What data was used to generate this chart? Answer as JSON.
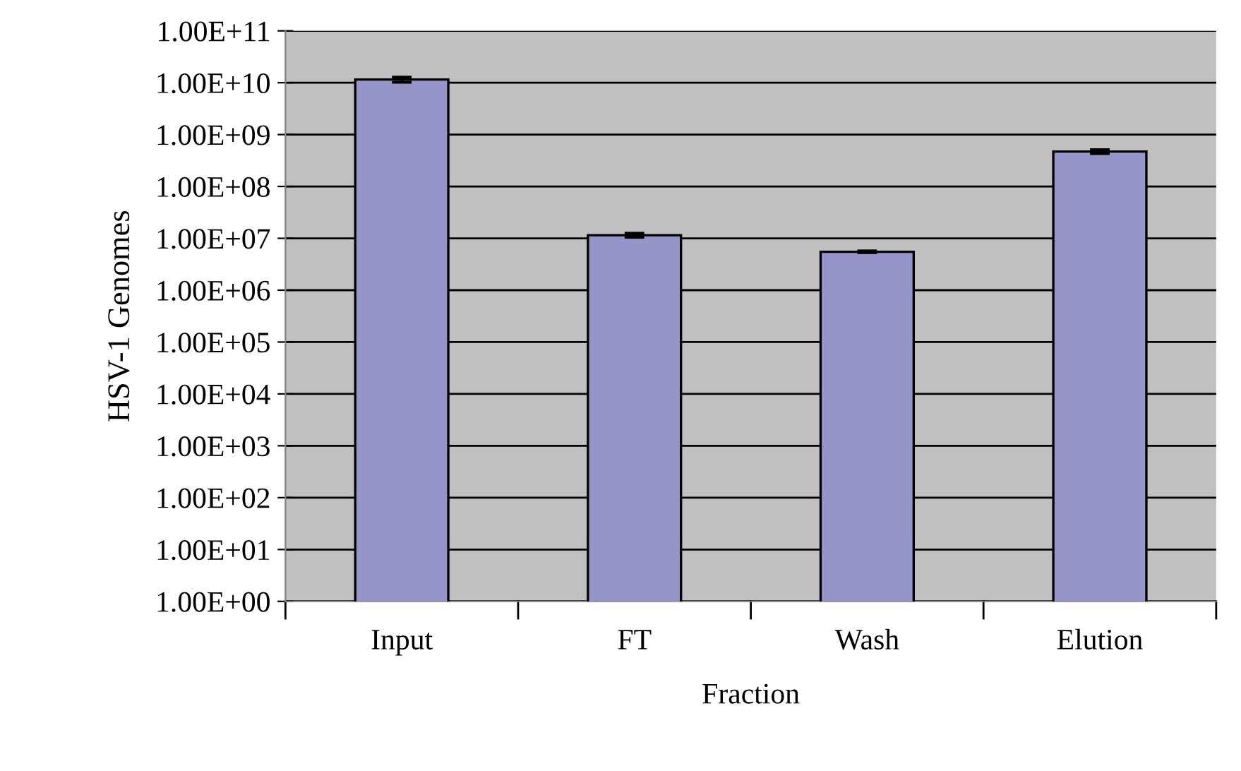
{
  "chart_data": {
    "type": "bar",
    "xlabel": "Fraction",
    "ylabel": "HSV-1 Genomes",
    "categories": [
      "Input",
      "FT",
      "Wash",
      "Elution"
    ],
    "series": [
      {
        "color": "#9595c9",
        "values": [
          11500000000,
          11500000,
          5500000,
          470000000
        ],
        "errors": [
          1300000000,
          1000000,
          200000,
          40000000
        ]
      }
    ],
    "log": "y",
    "ylim": [
      1,
      100000000000
    ],
    "yticks": [
      {
        "value": 1,
        "label": "1.00E+00"
      },
      {
        "value": 10,
        "label": "1.00E+01"
      },
      {
        "value": 100,
        "label": "1.00E+02"
      },
      {
        "value": 1000,
        "label": "1.00E+03"
      },
      {
        "value": 10000,
        "label": "1.00E+04"
      },
      {
        "value": 100000,
        "label": "1.00E+05"
      },
      {
        "value": 1000000,
        "label": "1.00E+06"
      },
      {
        "value": 10000000,
        "label": "1.00E+07"
      },
      {
        "value": 100000000,
        "label": "1.00E+08"
      },
      {
        "value": 1000000000,
        "label": "1.00E+09"
      },
      {
        "value": 10000000000,
        "label": "1.00E+10"
      },
      {
        "value": 100000000000,
        "label": "1.00E+11"
      }
    ],
    "grid": "y"
  }
}
